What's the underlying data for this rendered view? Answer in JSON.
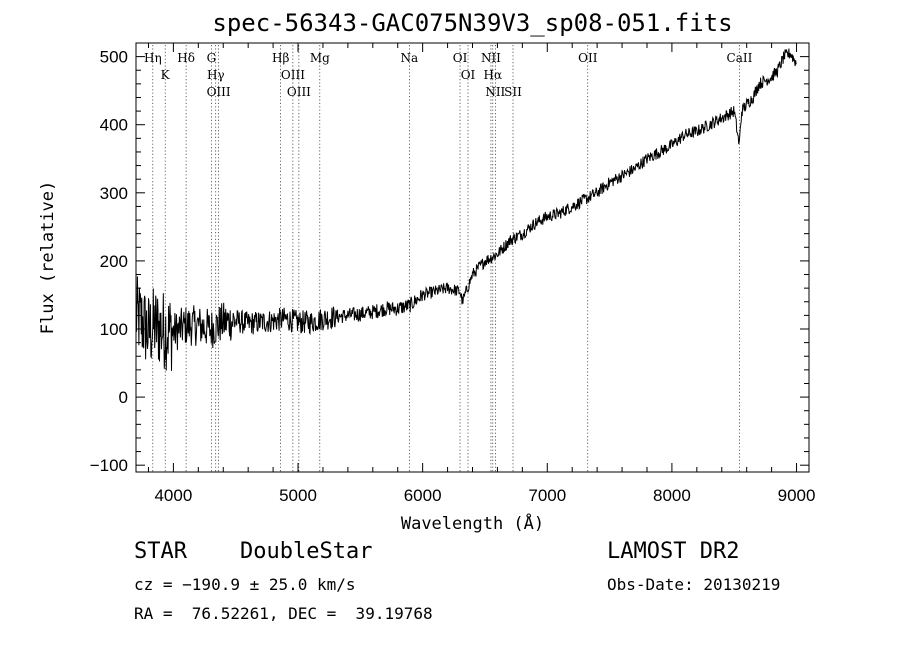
{
  "chart_data": {
    "type": "line",
    "title": "spec-56343-GAC075N39V3_sp08-051.fits",
    "xlabel": "Wavelength (Å)",
    "ylabel": "Flux (relative)",
    "xlim": [
      3700,
      9100
    ],
    "ylim": [
      -110,
      520
    ],
    "x_ticks": [
      4000,
      5000,
      6000,
      7000,
      8000,
      9000
    ],
    "y_ticks": [
      -100,
      0,
      100,
      200,
      300,
      400,
      500
    ],
    "grid": false,
    "series": [
      {
        "line_color": "#000000",
        "x": [
          3700,
          3750,
          3800,
          3850,
          3900,
          3950,
          4000,
          4100,
          4200,
          4300,
          4400,
          4500,
          4600,
          4700,
          4800,
          4900,
          5000,
          5100,
          5200,
          5300,
          5400,
          5500,
          5600,
          5700,
          5800,
          5900,
          6000,
          6100,
          6200,
          6300,
          6320,
          6400,
          6500,
          6600,
          6700,
          6800,
          6900,
          7000,
          7100,
          7200,
          7300,
          7400,
          7500,
          7600,
          7700,
          7800,
          7900,
          8000,
          8100,
          8200,
          8300,
          8400,
          8500,
          8540,
          8560,
          8600,
          8650,
          8700,
          8800,
          8850,
          8900,
          8950,
          9000
        ],
        "y": [
          120,
          110,
          95,
          105,
          100,
          98,
          95,
          105,
          105,
          100,
          110,
          112,
          108,
          110,
          112,
          115,
          110,
          110,
          115,
          118,
          120,
          122,
          125,
          130,
          130,
          135,
          150,
          155,
          160,
          155,
          140,
          180,
          200,
          210,
          230,
          240,
          255,
          265,
          270,
          280,
          290,
          300,
          315,
          325,
          335,
          350,
          360,
          370,
          385,
          390,
          400,
          410,
          420,
          370,
          420,
          430,
          440,
          460,
          470,
          480,
          500,
          505,
          490
        ]
      }
    ],
    "line_markers": [
      {
        "label": "K",
        "x": 3934
      },
      {
        "label": "Hη",
        "x": 3835
      },
      {
        "label": "Hδ",
        "x": 4102
      },
      {
        "label": "Hγ",
        "x": 4340
      },
      {
        "label": "G",
        "x": 4305
      },
      {
        "label": "OIII",
        "x": 4363
      },
      {
        "label": "Hβ",
        "x": 4861
      },
      {
        "label": "OIII",
        "x": 4959
      },
      {
        "label": "OIII",
        "x": 5007
      },
      {
        "label": "Mg",
        "x": 5175
      },
      {
        "label": "Na",
        "x": 5893
      },
      {
        "label": "OI",
        "x": 6300
      },
      {
        "label": "OI",
        "x": 6364
      },
      {
        "label": "NII",
        "x": 6548
      },
      {
        "label": "NII",
        "x": 6583
      },
      {
        "label": "Hα",
        "x": 6563
      },
      {
        "label": "SII",
        "x": 6725
      },
      {
        "label": "OII",
        "x": 7325
      },
      {
        "label": "CaII",
        "x": 8542
      }
    ]
  },
  "info": {
    "class": "STAR",
    "subclass": "DoubleStar",
    "survey": "LAMOST DR2",
    "cz": "cz = −190.9 ± 25.0 km/s",
    "obs_date": "Obs-Date: 20130219",
    "radec": "RA =  76.52261, DEC =  39.19768"
  }
}
